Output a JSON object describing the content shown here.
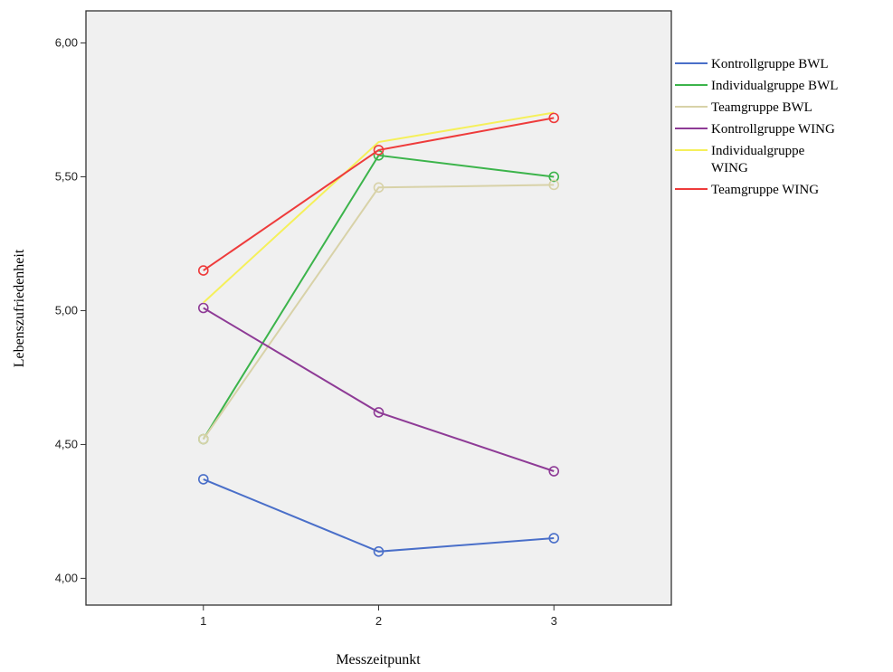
{
  "chart_data": {
    "type": "line",
    "xlabel": "Messzeitpunkt",
    "ylabel": "Lebenszufriedenheit",
    "x": [
      1,
      2,
      3
    ],
    "xlim": [
      0.33,
      3.67
    ],
    "ylim": [
      3.9,
      6.12
    ],
    "yticks": [
      4.0,
      4.5,
      5.0,
      5.5,
      6.0
    ],
    "ytick_labels": [
      "4,00",
      "4,50",
      "5,00",
      "5,50",
      "6,00"
    ],
    "xticks": [
      1,
      2,
      3
    ],
    "xtick_labels": [
      "1",
      "2",
      "3"
    ],
    "grid": false,
    "legend_position": "right",
    "plot_background": "#f0f0f0",
    "series": [
      {
        "name": "Kontrollgruppe BWL",
        "legend_lines": [
          "Kontrollgruppe BWL"
        ],
        "color": "#4a6fc9",
        "values": [
          4.37,
          4.1,
          4.15
        ],
        "markers": true
      },
      {
        "name": "Individualgruppe BWL",
        "legend_lines": [
          "Individualgruppe BWL"
        ],
        "color": "#3cb44b",
        "values": [
          4.52,
          5.58,
          5.5
        ],
        "markers": true
      },
      {
        "name": "Teamgruppe BWL",
        "legend_lines": [
          "Teamgruppe BWL"
        ],
        "color": "#d8d2a8",
        "values": [
          4.52,
          5.46,
          5.47
        ],
        "markers": true
      },
      {
        "name": "Kontrollgruppe WING",
        "legend_lines": [
          "Kontrollgruppe WING"
        ],
        "color": "#8e3b96",
        "values": [
          5.01,
          4.62,
          4.4
        ],
        "markers": true
      },
      {
        "name": "Individualgruppe WING",
        "legend_lines": [
          "Individualgruppe",
          "WING"
        ],
        "color": "#f5f05a",
        "values": [
          5.03,
          5.63,
          5.74
        ],
        "markers": false
      },
      {
        "name": "Teamgruppe WING",
        "legend_lines": [
          "Teamgruppe WING"
        ],
        "color": "#ee3b3b",
        "values": [
          5.15,
          5.6,
          5.72
        ],
        "markers": true
      }
    ]
  }
}
